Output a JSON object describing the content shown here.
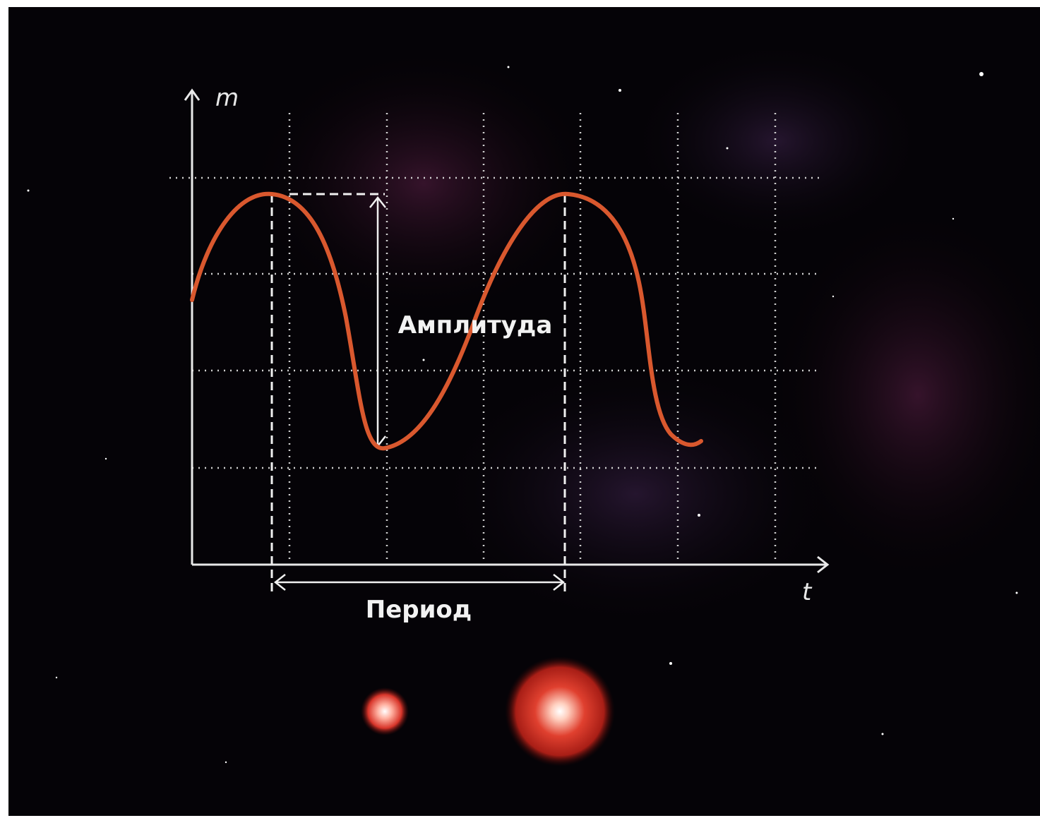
{
  "axes": {
    "y_label": "m",
    "x_label": "t"
  },
  "annotations": {
    "amplitude": "Амплитуда",
    "period": "Период"
  }
}
